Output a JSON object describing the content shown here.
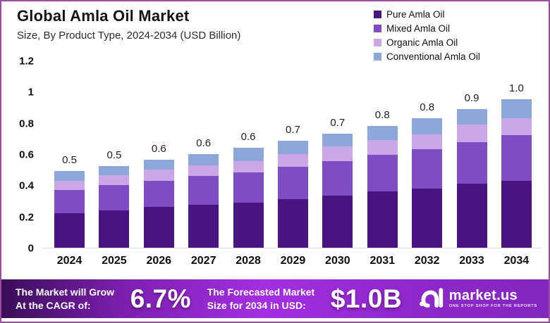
{
  "header": {
    "title": "Global Amla Oil Market",
    "subtitle": "Size, By Product Type, 2024-2034 (USD Billion)"
  },
  "chart_data": {
    "type": "bar",
    "stacked": true,
    "title": "Global Amla Oil Market",
    "subtitle": "Size, By Product Type, 2024-2034 (USD Billion)",
    "unit": "USD Billion",
    "categories": [
      "2024",
      "2025",
      "2026",
      "2027",
      "2028",
      "2029",
      "2030",
      "2031",
      "2032",
      "2033",
      "2034"
    ],
    "series": [
      {
        "name": "Pure Amla Oil",
        "color": "#4a1480",
        "values": [
          0.22,
          0.24,
          0.26,
          0.275,
          0.29,
          0.31,
          0.335,
          0.36,
          0.38,
          0.41,
          0.43
        ]
      },
      {
        "name": "Mixed Amla Oil",
        "color": "#7f4dc3",
        "values": [
          0.15,
          0.16,
          0.17,
          0.185,
          0.195,
          0.21,
          0.22,
          0.235,
          0.25,
          0.265,
          0.29
        ]
      },
      {
        "name": "Organic Amla Oil",
        "color": "#cba7e8",
        "values": [
          0.06,
          0.065,
          0.07,
          0.07,
          0.07,
          0.08,
          0.095,
          0.095,
          0.095,
          0.115,
          0.11
        ]
      },
      {
        "name": "Conventional Amla Oil",
        "color": "#8da7db",
        "values": [
          0.06,
          0.06,
          0.065,
          0.07,
          0.085,
          0.085,
          0.08,
          0.09,
          0.105,
          0.1,
          0.12
        ]
      }
    ],
    "total_labels": [
      "0.5",
      "0.5",
      "0.6",
      "0.6",
      "0.6",
      "0.7",
      "0.7",
      "0.8",
      "0.8",
      "0.9",
      "1.0"
    ],
    "totals": [
      0.5,
      0.5,
      0.6,
      0.6,
      0.6,
      0.7,
      0.7,
      0.8,
      0.8,
      0.9,
      1.0
    ],
    "y_ticks": [
      "1.2",
      "1",
      "0.8",
      "0.6",
      "0.4",
      "0.2",
      "0"
    ],
    "y_tick_values": [
      1.2,
      1.0,
      0.8,
      0.6,
      0.4,
      0.2,
      0
    ],
    "ylim": [
      0,
      1.2
    ],
    "xlabel": "",
    "ylabel": "",
    "grid": false,
    "legend_position": "top-right"
  },
  "banner": {
    "cagr_label_line1": "The Market will Grow",
    "cagr_label_line2": "At the CAGR of:",
    "cagr_value": "6.7%",
    "forecast_label_line1": "The Forecasted Market",
    "forecast_label_line2": "Size for 2034 in USD:",
    "forecast_value": "$1.0B",
    "brand": {
      "name": "market.us",
      "tagline": "ONE STOP SHOP FOR THE REPORTS"
    }
  },
  "colors": {
    "frame_border": "#9c4ca0",
    "banner_gradient_start": "#3a0d58",
    "banner_gradient_mid": "#a42ee2",
    "banner_gradient_end": "#8326bf",
    "axis_baseline": "#d9d9d9"
  }
}
